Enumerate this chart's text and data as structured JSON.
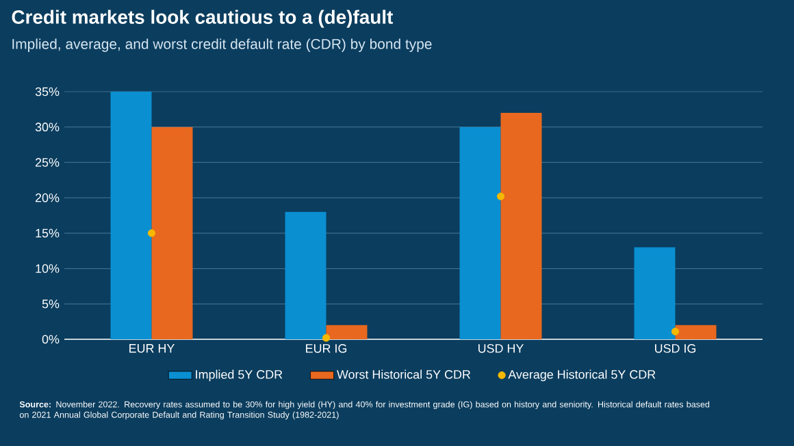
{
  "chart_data": {
    "type": "bar",
    "title": "Credit markets look cautious to a (de)fault",
    "subtitle": "Implied, average, and worst credit default rate (CDR) by bond type",
    "categories": [
      "EUR HY",
      "EUR IG",
      "USD HY",
      "USD IG"
    ],
    "series": [
      {
        "name": "Implied 5Y CDR",
        "color": "#0a8fd1",
        "values": [
          35,
          18,
          30,
          13
        ]
      },
      {
        "name": "Worst Historical 5Y CDR",
        "color": "#e8681f",
        "values": [
          30,
          2,
          32,
          2
        ]
      },
      {
        "name": "Average Historical 5Y CDR",
        "color": "#f5b800",
        "type": "scatter",
        "marker": "circle",
        "x": [
          "EUR HY",
          "EUR IG",
          "USD HY",
          "USD IG"
        ],
        "values": [
          15,
          0.2,
          20.2,
          1.1
        ]
      }
    ],
    "ylim": [
      0,
      35
    ],
    "yticks": [
      {
        "value": 0,
        "label": "0%"
      },
      {
        "value": 5,
        "label": "5%"
      },
      {
        "value": 10,
        "label": "10%"
      },
      {
        "value": 15,
        "label": "15%"
      },
      {
        "value": 20,
        "label": "20%"
      },
      {
        "value": 25,
        "label": "25%"
      },
      {
        "value": 30,
        "label": "30%"
      },
      {
        "value": 35,
        "label": "35%"
      }
    ],
    "grid": "y",
    "legend": "bottom",
    "annotations": [
      "**Source:** November 2022. Recovery rates assumed to be 30% for high yield (HY) and 40% for investment grade (IG) based on history and seniority. Historical default rates based on 2021 Annual Global Corporate Default and Rating Transition Study (1982-2021)"
    ]
  }
}
